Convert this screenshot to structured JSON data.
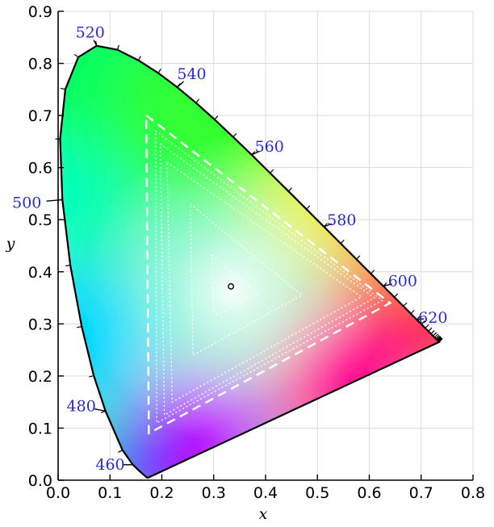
{
  "chart_data": {
    "type": "scatter",
    "title": "",
    "xlabel": "x",
    "ylabel": "y",
    "xlim": [
      0,
      0.8
    ],
    "ylim": [
      0,
      0.9
    ],
    "x_ticks": [
      "0.0",
      "0.1",
      "0.2",
      "0.3",
      "0.4",
      "0.5",
      "0.6",
      "0.7",
      "0.8"
    ],
    "y_ticks": [
      "0.0",
      "0.1",
      "0.2",
      "0.3",
      "0.4",
      "0.5",
      "0.6",
      "0.7",
      "0.8",
      "0.9"
    ],
    "grid": true,
    "spectral_locus": [
      [
        0.1741,
        0.005
      ],
      [
        0.1738,
        0.0049
      ],
      [
        0.1736,
        0.0049
      ],
      [
        0.1733,
        0.0048
      ],
      [
        0.1726,
        0.0048
      ],
      [
        0.1714,
        0.0051
      ],
      [
        0.1689,
        0.0069
      ],
      [
        0.1644,
        0.0109
      ],
      [
        0.1566,
        0.0177
      ],
      [
        0.144,
        0.0297
      ],
      [
        0.1241,
        0.0578
      ],
      [
        0.0913,
        0.1327
      ],
      [
        0.0687,
        0.2007
      ],
      [
        0.0454,
        0.295
      ],
      [
        0.0235,
        0.4127
      ],
      [
        0.0082,
        0.5384
      ],
      [
        0.0039,
        0.6548
      ],
      [
        0.0139,
        0.7502
      ],
      [
        0.0389,
        0.812
      ],
      [
        0.0743,
        0.8338
      ],
      [
        0.1142,
        0.8262
      ],
      [
        0.1547,
        0.8059
      ],
      [
        0.1929,
        0.7816
      ],
      [
        0.2296,
        0.7543
      ],
      [
        0.2658,
        0.7243
      ],
      [
        0.3016,
        0.6923
      ],
      [
        0.3373,
        0.6589
      ],
      [
        0.3731,
        0.6245
      ],
      [
        0.4087,
        0.5896
      ],
      [
        0.4441,
        0.5547
      ],
      [
        0.4788,
        0.5202
      ],
      [
        0.5125,
        0.4866
      ],
      [
        0.5448,
        0.4544
      ],
      [
        0.5752,
        0.4242
      ],
      [
        0.6029,
        0.3965
      ],
      [
        0.627,
        0.3725
      ],
      [
        0.6482,
        0.3514
      ],
      [
        0.6658,
        0.334
      ],
      [
        0.6801,
        0.3197
      ],
      [
        0.6915,
        0.3083
      ],
      [
        0.7006,
        0.2993
      ],
      [
        0.7079,
        0.292
      ],
      [
        0.714,
        0.2859
      ],
      [
        0.719,
        0.2809
      ],
      [
        0.723,
        0.277
      ],
      [
        0.726,
        0.274
      ],
      [
        0.7283,
        0.2717
      ],
      [
        0.73,
        0.27
      ],
      [
        0.7311,
        0.2689
      ],
      [
        0.732,
        0.268
      ],
      [
        0.7327,
        0.2673
      ],
      [
        0.7334,
        0.2666
      ],
      [
        0.734,
        0.266
      ],
      [
        0.7344,
        0.2656
      ],
      [
        0.7346,
        0.2654
      ],
      [
        0.7347,
        0.2653
      ]
    ],
    "wavelength_labels": [
      {
        "label": "460",
        "x": 0.144,
        "y": 0.0297
      },
      {
        "label": "480",
        "x": 0.0913,
        "y": 0.1327
      },
      {
        "label": "500",
        "x": 0.0082,
        "y": 0.5384
      },
      {
        "label": "520",
        "x": 0.0743,
        "y": 0.8338
      },
      {
        "label": "540",
        "x": 0.2296,
        "y": 0.7543
      },
      {
        "label": "560",
        "x": 0.3731,
        "y": 0.6245
      },
      {
        "label": "580",
        "x": 0.5125,
        "y": 0.4866
      },
      {
        "label": "600",
        "x": 0.627,
        "y": 0.3725
      },
      {
        "label": "620",
        "x": 0.6915,
        "y": 0.3083
      }
    ],
    "gamut_triangles": [
      {
        "style": "dashed",
        "points": [
          [
            0.17,
            0.7
          ],
          [
            0.64,
            0.34
          ],
          [
            0.175,
            0.09
          ]
        ]
      },
      {
        "style": "dotted",
        "points": [
          [
            0.188,
            0.67
          ],
          [
            0.625,
            0.345
          ],
          [
            0.19,
            0.11
          ]
        ]
      },
      {
        "style": "dotted",
        "points": [
          [
            0.197,
            0.645
          ],
          [
            0.61,
            0.35
          ],
          [
            0.205,
            0.125
          ]
        ]
      },
      {
        "style": "dotted",
        "points": [
          [
            0.21,
            0.61
          ],
          [
            0.585,
            0.352
          ],
          [
            0.22,
            0.15
          ]
        ]
      },
      {
        "style": "dotted",
        "points": [
          [
            0.255,
            0.53
          ],
          [
            0.47,
            0.355
          ],
          [
            0.26,
            0.24
          ]
        ]
      },
      {
        "style": "dotted",
        "points": [
          [
            0.297,
            0.432
          ],
          [
            0.385,
            0.357
          ],
          [
            0.3,
            0.315
          ]
        ]
      }
    ],
    "white_point": {
      "x": 0.3333,
      "y": 0.3333
    }
  }
}
